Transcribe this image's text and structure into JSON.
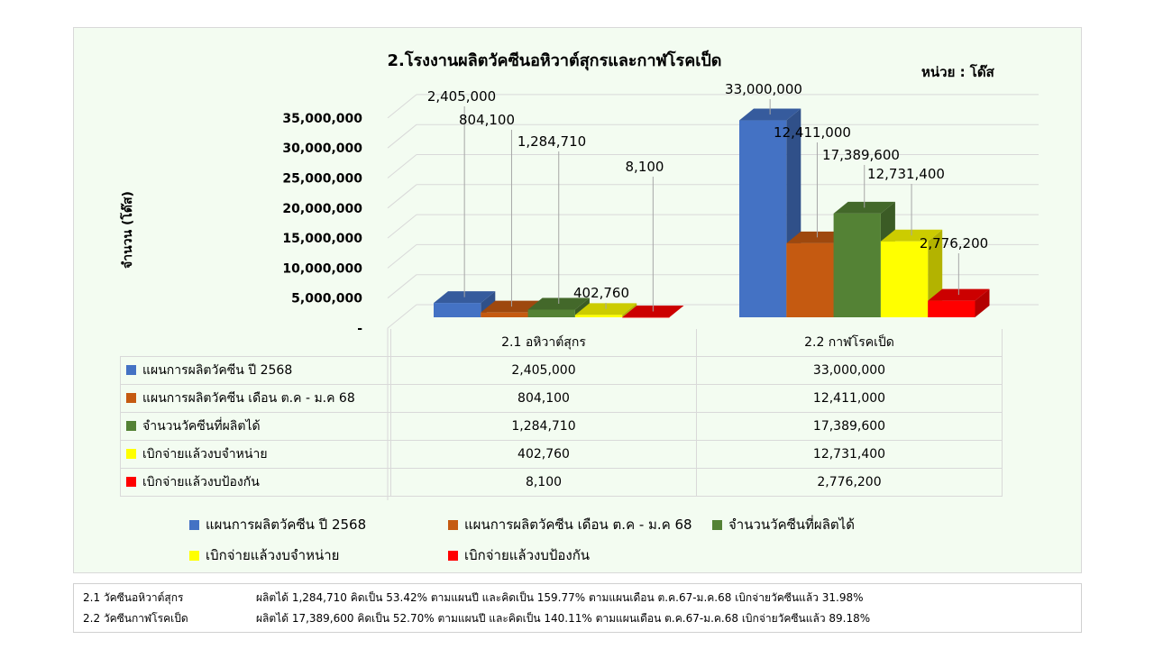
{
  "chart_data": {
    "type": "bar",
    "subtype": "3d-clustered-column-with-data-table",
    "title": "2.โรงงานผลิตวัคซีนอหิวาต์สุกรและกาฬโรคเป็ด",
    "unit_label": "หน่วย : โด๊ส",
    "ylabel": "จำนวน (โด๊ส)",
    "ylim": [
      0,
      35000000
    ],
    "yticks": [
      "-",
      "5,000,000",
      "10,000,000",
      "15,000,000",
      "20,000,000",
      "25,000,000",
      "30,000,000",
      "35,000,000"
    ],
    "grid": true,
    "legend_position": "bottom",
    "categories": [
      "2.1 อหิวาต์สุกร",
      "2.2 กาฬโรคเป็ด"
    ],
    "series": [
      {
        "name": "แผนการผลิตวัคซีน ปี 2568",
        "color": "#4472c4",
        "values": [
          2405000,
          33000000
        ],
        "labels": [
          "2,405,000",
          "33,000,000"
        ]
      },
      {
        "name": "แผนการผลิตวัคซีน เดือน ต.ค - ม.ค 68",
        "color": "#c55a11",
        "values": [
          804100,
          12411000
        ],
        "labels": [
          "804,100",
          "12,411,000"
        ]
      },
      {
        "name": "จำนวนวัคซีนที่ผลิตได้",
        "color": "#548235",
        "values": [
          1284710,
          17389600
        ],
        "labels": [
          "1,284,710",
          "17,389,600"
        ]
      },
      {
        "name": "เบิกจ่ายแล้วงบจำหน่าย",
        "color": "#ffff00",
        "values": [
          402760,
          12731400
        ],
        "labels": [
          "402,760",
          "12,731,400"
        ]
      },
      {
        "name": "เบิกจ่ายแล้วงบป้องกัน",
        "color": "#ff0000",
        "values": [
          8100,
          2776200
        ],
        "labels": [
          "8,100",
          "2,776,200"
        ]
      }
    ]
  },
  "notes": [
    {
      "label": "2.1 วัคซีนอหิวาต์สุกร",
      "text": "ผลิตได้ 1,284,710 คิดเป็น 53.42% ตามแผนปี และคิดเป็น 159.77% ตามแผนเดือน ต.ค.67-ม.ค.68 เบิกจ่ายวัคซีนแล้ว 31.98%"
    },
    {
      "label": "2.2 วัคซีนกาฬโรคเป็ด",
      "text": "ผลิตได้ 17,389,600 คิดเป็น 52.70% ตามแผนปี และคิดเป็น 140.11% ตามแผนเดือน ต.ค.67-ม.ค.68 เบิกจ่ายวัคซีนแล้ว 89.18%"
    }
  ]
}
